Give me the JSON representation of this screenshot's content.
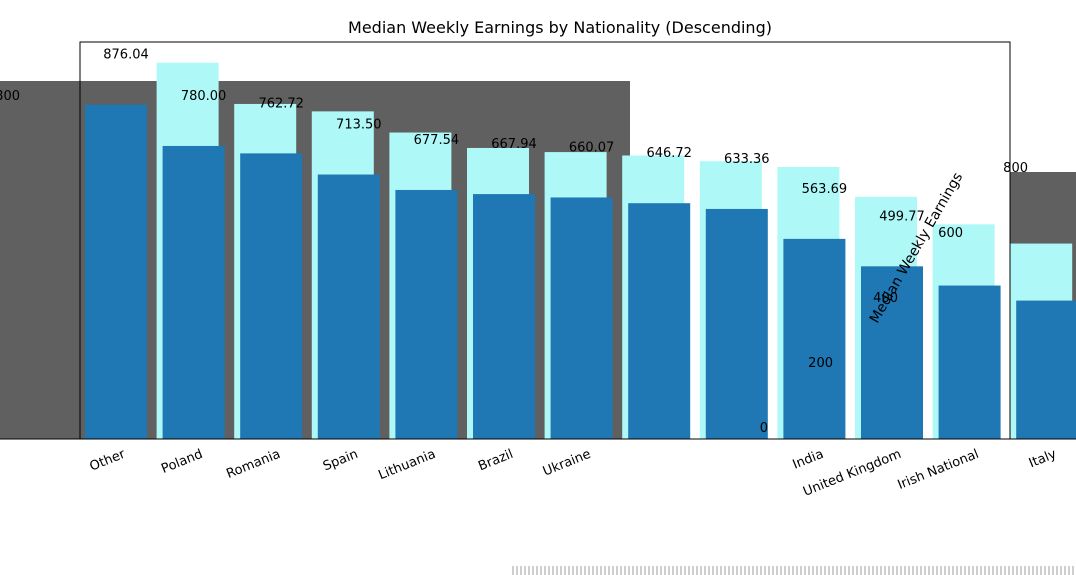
{
  "chart_data": {
    "type": "bar",
    "title": "Median Weekly Earnings by Nationality (Descending)",
    "xlabel": "",
    "ylabel": "Median Weekly Earnings",
    "ylim": [
      0,
      880
    ],
    "yticks": [
      0,
      200,
      400,
      600,
      800
    ],
    "categories": [
      "Other",
      "Poland",
      "Romania",
      "Spain",
      "Lithuania",
      "Brazil",
      "Ukraine",
      "",
      "",
      "India",
      "United Kingdom",
      "Irish National",
      "Italy"
    ],
    "values": [
      876.04,
      780.0,
      762.72,
      713.5,
      677.54,
      667.94,
      660.07,
      646.72,
      633.36,
      563.69,
      499.77,
      455.0,
      420.0
    ],
    "value_labels": [
      "876.04",
      "780.00",
      "762.72",
      "713.50",
      "677.54",
      "667.94",
      "660.07",
      "646.72",
      "633.36",
      "563.69",
      "499.77",
      "",
      ""
    ],
    "colors": {
      "bar": "#1f77b4",
      "bar_shadow": "#aef8f8",
      "background_band": "#606060",
      "text": "#000000"
    }
  }
}
